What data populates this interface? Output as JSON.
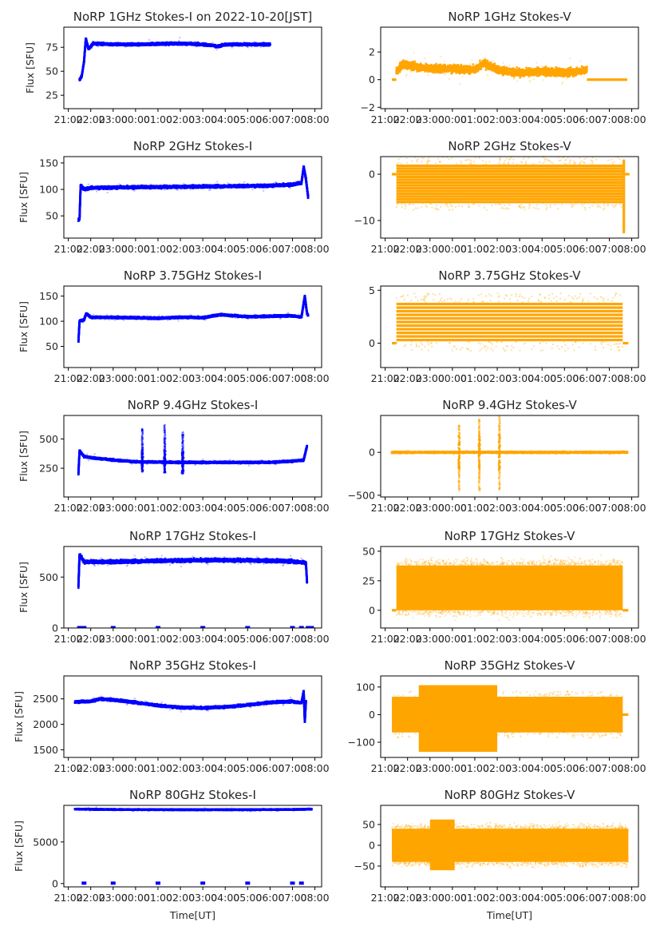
{
  "figure": {
    "x_axis_label": "Time[UT]",
    "y_axis_label": "Flux [SFU]",
    "stokes_i_color": "#0000ff",
    "stokes_v_color": "#ffa500"
  },
  "chart_data": [
    {
      "type": "scatter",
      "title": "NoRP 1GHz Stokes-I on 2022-10-20[JST]",
      "ylabel": "Flux [SFU]",
      "xlabel": "",
      "x_ticks": [
        "21:00",
        "22:00",
        "23:00",
        "00:00",
        "01:00",
        "02:00",
        "03:00",
        "04:00",
        "05:00",
        "06:00",
        "07:00",
        "08:00"
      ],
      "xlim_hours": [
        -3.2,
        8.3
      ],
      "ylim": [
        11,
        96
      ],
      "y_ticks": [
        25,
        50,
        75
      ],
      "series": {
        "name": "Stokes-I",
        "color": "#0000ff",
        "profile": [
          [
            -2.5,
            41
          ],
          [
            -2.4,
            45
          ],
          [
            -2.3,
            60
          ],
          [
            -2.22,
            84
          ],
          [
            -2.1,
            73
          ],
          [
            -1.9,
            79
          ],
          [
            -1,
            78
          ],
          [
            0,
            78
          ],
          [
            1,
            78.5
          ],
          [
            2,
            79
          ],
          [
            3,
            78
          ],
          [
            3.7,
            76
          ],
          [
            4,
            78
          ],
          [
            5,
            78
          ],
          [
            6,
            78
          ]
        ],
        "spread": 2
      }
    },
    {
      "type": "scatter",
      "title": "NoRP 1GHz Stokes-V",
      "ylabel": "",
      "xlabel": "",
      "x_ticks": [
        "21:00",
        "22:00",
        "23:00",
        "00:00",
        "01:00",
        "02:00",
        "03:00",
        "04:00",
        "05:00",
        "06:00",
        "07:00",
        "08:00"
      ],
      "xlim_hours": [
        -3.2,
        8.3
      ],
      "ylim": [
        -2.1,
        3.8
      ],
      "y_ticks": [
        -2,
        0,
        2
      ],
      "series": {
        "name": "Stokes-V",
        "color": "#ffa500",
        "profile": [
          [
            -2.5,
            0.6
          ],
          [
            -2.2,
            1.1
          ],
          [
            -1,
            0.8
          ],
          [
            0,
            0.8
          ],
          [
            1,
            0.7
          ],
          [
            1.4,
            1.2
          ],
          [
            2,
            0.7
          ],
          [
            3,
            0.5
          ],
          [
            4,
            0.6
          ],
          [
            5,
            0.5
          ],
          [
            6,
            0.7
          ]
        ],
        "spread": 0.45,
        "zero_segments": [
          [
            -2.7,
            -2.5
          ],
          [
            6.0,
            7.8
          ]
        ]
      }
    },
    {
      "type": "scatter",
      "title": "NoRP 2GHz Stokes-I",
      "ylabel": "Flux [SFU]",
      "xlabel": "",
      "x_ticks": [
        "21:00",
        "22:00",
        "23:00",
        "00:00",
        "01:00",
        "02:00",
        "03:00",
        "04:00",
        "05:00",
        "06:00",
        "07:00",
        "08:00"
      ],
      "xlim_hours": [
        -3.2,
        8.3
      ],
      "ylim": [
        8,
        162
      ],
      "y_ticks": [
        50,
        100,
        150
      ],
      "series": {
        "name": "Stokes-I",
        "color": "#0000ff",
        "profile": [
          [
            -2.55,
            42
          ],
          [
            -2.5,
            45
          ],
          [
            -2.45,
            108
          ],
          [
            -2.3,
            100
          ],
          [
            -2,
            103
          ],
          [
            0,
            104
          ],
          [
            2,
            105
          ],
          [
            4,
            106
          ],
          [
            6,
            107
          ],
          [
            7.0,
            109
          ],
          [
            7.4,
            112
          ],
          [
            7.5,
            143
          ],
          [
            7.6,
            120
          ],
          [
            7.7,
            85
          ]
        ],
        "spread": 4
      }
    },
    {
      "type": "scatter",
      "title": "NoRP 2GHz Stokes-V",
      "ylabel": "",
      "xlabel": "",
      "x_ticks": [
        "21:00",
        "22:00",
        "23:00",
        "00:00",
        "01:00",
        "02:00",
        "03:00",
        "04:00",
        "05:00",
        "06:00",
        "07:00",
        "08:00"
      ],
      "xlim_hours": [
        -3.2,
        8.3
      ],
      "ylim": [
        -13.8,
        3.8
      ],
      "y_ticks": [
        -10,
        0
      ],
      "series": {
        "name": "Stokes-V",
        "color": "#ffa500",
        "band": {
          "x": [
            -2.5,
            7.6
          ],
          "levels_min": -6,
          "levels_max": 2,
          "step": 0.6
        },
        "tail": {
          "x": 7.65,
          "min": -12.5,
          "max": 3
        },
        "zero_segments": [
          [
            -2.7,
            -2.5
          ],
          [
            7.7,
            7.9
          ]
        ]
      }
    },
    {
      "type": "scatter",
      "title": "NoRP 3.75GHz Stokes-I",
      "ylabel": "Flux [SFU]",
      "xlabel": "",
      "x_ticks": [
        "21:00",
        "22:00",
        "23:00",
        "00:00",
        "01:00",
        "02:00",
        "03:00",
        "04:00",
        "05:00",
        "06:00",
        "07:00",
        "08:00"
      ],
      "xlim_hours": [
        -3.2,
        8.3
      ],
      "ylim": [
        8,
        170
      ],
      "y_ticks": [
        50,
        100,
        150
      ],
      "series": {
        "name": "Stokes-I",
        "color": "#0000ff",
        "profile": [
          [
            -2.55,
            60
          ],
          [
            -2.5,
            100
          ],
          [
            -2.3,
            103
          ],
          [
            -2.2,
            115
          ],
          [
            -2,
            108
          ],
          [
            0,
            107
          ],
          [
            1,
            106
          ],
          [
            2,
            108
          ],
          [
            3,
            107
          ],
          [
            3.8,
            113
          ],
          [
            5,
            109
          ],
          [
            7,
            111
          ],
          [
            7.4,
            108
          ],
          [
            7.55,
            150
          ],
          [
            7.65,
            115
          ],
          [
            7.7,
            112
          ]
        ],
        "spread": 3
      }
    },
    {
      "type": "scatter",
      "title": "NoRP 3.75GHz Stokes-V",
      "ylabel": "",
      "xlabel": "",
      "x_ticks": [
        "21:00",
        "22:00",
        "23:00",
        "00:00",
        "01:00",
        "02:00",
        "03:00",
        "04:00",
        "05:00",
        "06:00",
        "07:00",
        "08:00"
      ],
      "xlim_hours": [
        -3.2,
        8.3
      ],
      "ylim": [
        -2.3,
        5.4
      ],
      "y_ticks": [
        0,
        5
      ],
      "series": {
        "name": "Stokes-V",
        "color": "#ffa500",
        "band": {
          "x": [
            -2.5,
            7.6
          ],
          "levels_min": 0.3,
          "levels_max": 3.7,
          "step": 0.34
        },
        "zero_segments": [
          [
            -2.7,
            -2.5
          ],
          [
            7.6,
            7.85
          ]
        ]
      }
    },
    {
      "type": "scatter",
      "title": "NoRP 9.4GHz Stokes-I",
      "ylabel": "Flux [SFU]",
      "xlabel": "",
      "x_ticks": [
        "21:00",
        "22:00",
        "23:00",
        "00:00",
        "01:00",
        "02:00",
        "03:00",
        "04:00",
        "05:00",
        "06:00",
        "07:00",
        "08:00"
      ],
      "xlim_hours": [
        -3.2,
        8.3
      ],
      "ylim": [
        5,
        700
      ],
      "y_ticks": [
        250,
        500
      ],
      "series": {
        "name": "Stokes-I",
        "color": "#0000ff",
        "profile": [
          [
            -2.55,
            205
          ],
          [
            -2.5,
            400
          ],
          [
            -2.3,
            350
          ],
          [
            -2,
            340
          ],
          [
            -1,
            320
          ],
          [
            0,
            305
          ],
          [
            2,
            300
          ],
          [
            4,
            300
          ],
          [
            6,
            300
          ],
          [
            7,
            310
          ],
          [
            7.5,
            320
          ],
          [
            7.65,
            440
          ]
        ],
        "spread": 12,
        "bursts": [
          {
            "x": 0.3,
            "min": 215,
            "max": 590
          },
          {
            "x": 1.3,
            "min": 210,
            "max": 620
          },
          {
            "x": 2.1,
            "min": 200,
            "max": 560
          }
        ]
      }
    },
    {
      "type": "scatter",
      "title": "NoRP 9.4GHz Stokes-V",
      "ylabel": "",
      "xlabel": "",
      "x_ticks": [
        "21:00",
        "22:00",
        "23:00",
        "00:00",
        "01:00",
        "02:00",
        "03:00",
        "04:00",
        "05:00",
        "06:00",
        "07:00",
        "08:00"
      ],
      "xlim_hours": [
        -3.2,
        8.3
      ],
      "ylim": [
        -520,
        430
      ],
      "y_ticks": [
        -500,
        0
      ],
      "series": {
        "name": "Stokes-V",
        "color": "#ffa500",
        "profile": [
          [
            -2.7,
            0
          ],
          [
            7.8,
            0
          ]
        ],
        "spread": 12,
        "bursts": [
          {
            "x": 0.3,
            "min": -450,
            "max": 320
          },
          {
            "x": 1.2,
            "min": -450,
            "max": 390
          },
          {
            "x": 2.1,
            "min": -440,
            "max": 420
          }
        ]
      }
    },
    {
      "type": "scatter",
      "title": "NoRP 17GHz Stokes-I",
      "ylabel": "Flux [SFU]",
      "xlabel": "",
      "x_ticks": [
        "21:00",
        "22:00",
        "23:00",
        "00:00",
        "01:00",
        "02:00",
        "03:00",
        "04:00",
        "05:00",
        "06:00",
        "07:00",
        "08:00"
      ],
      "xlim_hours": [
        -3.2,
        8.3
      ],
      "ylim": [
        0,
        800
      ],
      "y_ticks": [
        0,
        500
      ],
      "series": {
        "name": "Stokes-I",
        "color": "#0000ff",
        "profile": [
          [
            -2.55,
            410
          ],
          [
            -2.5,
            720
          ],
          [
            -2.3,
            650
          ],
          [
            -1,
            650
          ],
          [
            1,
            660
          ],
          [
            3,
            665
          ],
          [
            5,
            665
          ],
          [
            7,
            655
          ],
          [
            7.6,
            640
          ],
          [
            7.65,
            450
          ]
        ],
        "spread": 25,
        "zero_marks": [
          -2.5,
          -2.3,
          -1,
          1,
          3,
          5,
          7,
          7.4,
          7.7,
          7.85
        ]
      }
    },
    {
      "type": "scatter",
      "title": "NoRP 17GHz Stokes-V",
      "ylabel": "",
      "xlabel": "",
      "x_ticks": [
        "21:00",
        "22:00",
        "23:00",
        "00:00",
        "01:00",
        "02:00",
        "03:00",
        "04:00",
        "05:00",
        "06:00",
        "07:00",
        "08:00"
      ],
      "xlim_hours": [
        -3.2,
        8.3
      ],
      "ylim": [
        -15,
        54
      ],
      "y_ticks": [
        0,
        25,
        50
      ],
      "series": {
        "name": "Stokes-V",
        "color": "#ffa500",
        "noise_band": {
          "x": [
            -2.5,
            7.6
          ],
          "min": 0,
          "max": 38
        },
        "zero_segments": [
          [
            -2.7,
            -2.5
          ],
          [
            7.6,
            7.85
          ]
        ]
      }
    },
    {
      "type": "scatter",
      "title": "NoRP 35GHz Stokes-I",
      "ylabel": "Flux [SFU]",
      "xlabel": "",
      "x_ticks": [
        "21:00",
        "22:00",
        "23:00",
        "00:00",
        "01:00",
        "02:00",
        "03:00",
        "04:00",
        "05:00",
        "06:00",
        "07:00",
        "08:00"
      ],
      "xlim_hours": [
        -3.2,
        8.3
      ],
      "ylim": [
        1350,
        2950
      ],
      "y_ticks": [
        1500,
        2000,
        2500
      ],
      "series": {
        "name": "Stokes-I",
        "color": "#0000ff",
        "profile": [
          [
            -2.7,
            2440
          ],
          [
            -2,
            2450
          ],
          [
            -1.6,
            2500
          ],
          [
            -1,
            2480
          ],
          [
            0,
            2430
          ],
          [
            1,
            2370
          ],
          [
            2,
            2330
          ],
          [
            3,
            2320
          ],
          [
            4,
            2340
          ],
          [
            5,
            2380
          ],
          [
            6,
            2430
          ],
          [
            7,
            2450
          ],
          [
            7.4,
            2420
          ],
          [
            7.5,
            2650
          ],
          [
            7.55,
            2050
          ],
          [
            7.6,
            2450
          ]
        ],
        "spread": 35
      }
    },
    {
      "type": "scatter",
      "title": "NoRP 35GHz Stokes-V",
      "ylabel": "",
      "xlabel": "",
      "x_ticks": [
        "21:00",
        "22:00",
        "23:00",
        "00:00",
        "01:00",
        "02:00",
        "03:00",
        "04:00",
        "05:00",
        "06:00",
        "07:00",
        "08:00"
      ],
      "xlim_hours": [
        -3.2,
        8.3
      ],
      "ylim": [
        -155,
        140
      ],
      "y_ticks": [
        -100,
        0,
        100
      ],
      "series": {
        "name": "Stokes-V",
        "color": "#ffa500",
        "band": {
          "x": [
            -2.7,
            7.6
          ],
          "levels_min": -60,
          "levels_max": 60,
          "step": 8
        },
        "wide_band": {
          "x": [
            -1.5,
            2.0
          ],
          "levels_min": -130,
          "levels_max": 105,
          "step": 8
        },
        "zero_segments": [
          [
            7.5,
            7.85
          ]
        ]
      }
    },
    {
      "type": "scatter",
      "title": "NoRP 80GHz Stokes-I",
      "ylabel": "Flux [SFU]",
      "xlabel": "Time[UT]",
      "x_ticks": [
        "21:00",
        "22:00",
        "23:00",
        "00:00",
        "01:00",
        "02:00",
        "03:00",
        "04:00",
        "05:00",
        "06:00",
        "07:00",
        "08:00"
      ],
      "xlim_hours": [
        -3.2,
        8.3
      ],
      "ylim": [
        -400,
        9400
      ],
      "y_ticks": [
        0,
        5000
      ],
      "series": {
        "name": "Stokes-I",
        "color": "#0000ff",
        "profile": [
          [
            -2.7,
            8950
          ],
          [
            -1,
            8900
          ],
          [
            2,
            8880
          ],
          [
            5,
            8880
          ],
          [
            7,
            8900
          ],
          [
            7.85,
            8950
          ]
        ],
        "spread": 90,
        "zero_marks": [
          -2.3,
          -1,
          1,
          3,
          5,
          7,
          7.4
        ]
      }
    },
    {
      "type": "scatter",
      "title": "NoRP 80GHz Stokes-V",
      "ylabel": "",
      "xlabel": "Time[UT]",
      "x_ticks": [
        "21:00",
        "22:00",
        "23:00",
        "00:00",
        "01:00",
        "02:00",
        "03:00",
        "04:00",
        "05:00",
        "06:00",
        "07:00",
        "08:00"
      ],
      "xlim_hours": [
        -3.2,
        8.3
      ],
      "ylim": [
        -100,
        96
      ],
      "y_ticks": [
        -50,
        0,
        50
      ],
      "series": {
        "name": "Stokes-V",
        "color": "#ffa500",
        "noise_band": {
          "x": [
            -2.7,
            7.85
          ],
          "min": -40,
          "max": 40
        },
        "wide_noise": {
          "x": [
            -1.0,
            0.1
          ],
          "min": -60,
          "max": 62
        }
      }
    }
  ]
}
